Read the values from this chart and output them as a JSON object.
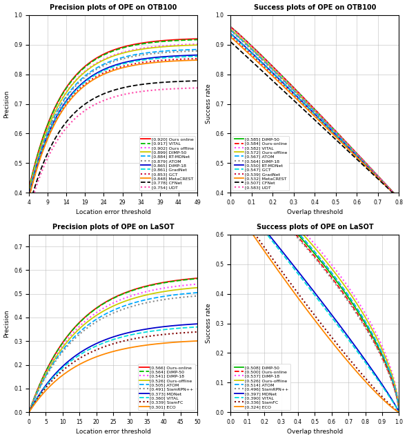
{
  "otb_precision": {
    "title": "Precision plots of OPE on OTB100",
    "xlabel": "Location error threshold",
    "ylabel": "Precision",
    "xlim": [
      4,
      49
    ],
    "ylim": [
      0.4,
      1.0
    ],
    "xticks": [
      4,
      9,
      14,
      19,
      24,
      29,
      34,
      39,
      44,
      49
    ],
    "yticks": [
      0.4,
      0.5,
      0.6,
      0.7,
      0.8,
      0.9,
      1.0
    ],
    "legend_loc": "lower right",
    "curves": [
      {
        "label": "[0.920] Ours online",
        "color": "#ff0000",
        "ls": "-",
        "lw": 1.3,
        "score": 0.92
      },
      {
        "label": "[0.917] VITAL",
        "color": "#00bb00",
        "ls": "--",
        "lw": 1.3,
        "score": 0.917
      },
      {
        "label": "[0.902] Ours offline",
        "color": "#ff44ff",
        "ls": ":",
        "lw": 1.5,
        "score": 0.902
      },
      {
        "label": "[0.899] DIMP-50",
        "color": "#cccc00",
        "ls": "-",
        "lw": 1.3,
        "score": 0.899
      },
      {
        "label": "[0.884] RT-MDNet",
        "color": "#00aaff",
        "ls": "--",
        "lw": 1.3,
        "score": 0.884
      },
      {
        "label": "[0.879] ATOM",
        "color": "#888888",
        "ls": ":",
        "lw": 1.5,
        "score": 0.879
      },
      {
        "label": "[0.865] DiMP-18",
        "color": "#0000cc",
        "ls": "-",
        "lw": 1.3,
        "score": 0.865
      },
      {
        "label": "[0.861] GradNet",
        "color": "#00dddd",
        "ls": "--",
        "lw": 1.3,
        "score": 0.861
      },
      {
        "label": "[0.853] GCT",
        "color": "#cc0033",
        "ls": ":",
        "lw": 1.5,
        "score": 0.853
      },
      {
        "label": "[0.848] MetaCREST",
        "color": "#ff8800",
        "ls": "-",
        "lw": 1.3,
        "score": 0.848
      },
      {
        "label": "[0.778] CFNet",
        "color": "#000000",
        "ls": "--",
        "lw": 1.3,
        "score": 0.778
      },
      {
        "label": "[0.754] UDT",
        "color": "#ff44aa",
        "ls": ":",
        "lw": 1.5,
        "score": 0.754
      }
    ]
  },
  "otb_success": {
    "title": "Success plots of OPE on OTB100",
    "xlabel": "Overlap threshold",
    "ylabel": "Success rate",
    "xlim": [
      0.0,
      0.8
    ],
    "ylim": [
      0.4,
      1.0
    ],
    "xticks": [
      0.0,
      0.1,
      0.2,
      0.3,
      0.4,
      0.5,
      0.6,
      0.7,
      0.8
    ],
    "yticks": [
      0.4,
      0.5,
      0.6,
      0.7,
      0.8,
      0.9,
      1.0
    ],
    "legend_loc": "lower left",
    "curves": [
      {
        "label": "[0.585] DiMP-50",
        "color": "#00bb00",
        "ls": "-",
        "lw": 1.3,
        "score": 0.585
      },
      {
        "label": "[0.584] Ours-online",
        "color": "#ff0000",
        "ls": "--",
        "lw": 1.3,
        "score": 0.584
      },
      {
        "label": "[0.582] VITAL",
        "color": "#ff44ff",
        "ls": ":",
        "lw": 1.5,
        "score": 0.582
      },
      {
        "label": "[0.572] Ours-offline",
        "color": "#cccc00",
        "ls": "-",
        "lw": 1.3,
        "score": 0.572
      },
      {
        "label": "[0.567] ATOM",
        "color": "#00aaff",
        "ls": "--",
        "lw": 1.3,
        "score": 0.567
      },
      {
        "label": "[0.564] DiMP-18",
        "color": "#888888",
        "ls": ":",
        "lw": 1.5,
        "score": 0.564
      },
      {
        "label": "[0.550] RT-MDNet",
        "color": "#0000cc",
        "ls": "-",
        "lw": 1.3,
        "score": 0.55
      },
      {
        "label": "[0.547] GCT",
        "color": "#00dddd",
        "ls": "--",
        "lw": 1.3,
        "score": 0.547
      },
      {
        "label": "[0.539] GradNet",
        "color": "#cc0033",
        "ls": ":",
        "lw": 1.5,
        "score": 0.539
      },
      {
        "label": "[0.532] MetaCREST",
        "color": "#ff8800",
        "ls": "-",
        "lw": 1.3,
        "score": 0.532
      },
      {
        "label": "[0.507] CFNet",
        "color": "#000000",
        "ls": "--",
        "lw": 1.3,
        "score": 0.507
      },
      {
        "label": "[0.583] UDT",
        "color": "#ff44aa",
        "ls": ":",
        "lw": 1.5,
        "score": 0.583
      }
    ]
  },
  "lasot_precision": {
    "title": "Precision plots of OPE on LaSOT",
    "xlabel": "Location error threshold",
    "ylabel": "Precision",
    "xlim": [
      0,
      50
    ],
    "ylim": [
      0.0,
      0.75
    ],
    "xticks": [
      0,
      5,
      10,
      15,
      20,
      25,
      30,
      35,
      40,
      45,
      50
    ],
    "yticks": [
      0.0,
      0.1,
      0.2,
      0.3,
      0.4,
      0.5,
      0.6,
      0.7
    ],
    "legend_loc": "lower right",
    "curves": [
      {
        "label": "[0.566] Ours-online",
        "color": "#ff0000",
        "ls": "-",
        "lw": 1.3,
        "score": 0.566
      },
      {
        "label": "[0.564] DiMP-50",
        "color": "#00bb00",
        "ls": "--",
        "lw": 1.3,
        "score": 0.564
      },
      {
        "label": "[0.541] DiMP-18",
        "color": "#ff44ff",
        "ls": ":",
        "lw": 1.5,
        "score": 0.541
      },
      {
        "label": "[0.526] Ours-offline",
        "color": "#cccc00",
        "ls": "-",
        "lw": 1.3,
        "score": 0.526
      },
      {
        "label": "[0.505] ATOM",
        "color": "#00aaff",
        "ls": "--",
        "lw": 1.3,
        "score": 0.505
      },
      {
        "label": "[0.491] SiamRPN++",
        "color": "#888888",
        "ls": ":",
        "lw": 1.5,
        "score": 0.491
      },
      {
        "label": "[0.373] MDNet",
        "color": "#0000cc",
        "ls": "-",
        "lw": 1.3,
        "score": 0.373
      },
      {
        "label": "[0.360] VITAL",
        "color": "#00dddd",
        "ls": "--",
        "lw": 1.3,
        "score": 0.36
      },
      {
        "label": "[0.339] SiamFC",
        "color": "#800000",
        "ls": ":",
        "lw": 1.5,
        "score": 0.339
      },
      {
        "label": "[0.301] ECO",
        "color": "#ff8800",
        "ls": "-",
        "lw": 1.3,
        "score": 0.301
      }
    ]
  },
  "lasot_success": {
    "title": "Success plots of OPE on LaSOT",
    "xlabel": "Overlap threshold",
    "ylabel": "Success rate",
    "xlim": [
      0.0,
      1.0
    ],
    "ylim": [
      0.0,
      0.6
    ],
    "xticks": [
      0.0,
      0.1,
      0.2,
      0.3,
      0.4,
      0.5,
      0.6,
      0.7,
      0.8,
      0.9,
      1.0
    ],
    "yticks": [
      0.0,
      0.1,
      0.2,
      0.3,
      0.4,
      0.5,
      0.6
    ],
    "legend_loc": "lower left",
    "curves": [
      {
        "label": "[0.508] DiMP-50",
        "color": "#00bb00",
        "ls": "-",
        "lw": 1.3,
        "score": 0.508
      },
      {
        "label": "[0.500] Ours-online",
        "color": "#ff0000",
        "ls": "--",
        "lw": 1.3,
        "score": 0.5
      },
      {
        "label": "[0.537] DiMP-18",
        "color": "#ff44ff",
        "ls": ":",
        "lw": 1.5,
        "score": 0.537
      },
      {
        "label": "[0.526] Ours-offline",
        "color": "#cccc00",
        "ls": "-",
        "lw": 1.3,
        "score": 0.526
      },
      {
        "label": "[0.514] ATOM",
        "color": "#00aaff",
        "ls": "--",
        "lw": 1.3,
        "score": 0.514
      },
      {
        "label": "[0.496] SiamRPN++",
        "color": "#888888",
        "ls": ":",
        "lw": 1.5,
        "score": 0.496
      },
      {
        "label": "[0.397] MDNet",
        "color": "#0000cc",
        "ls": "-",
        "lw": 1.3,
        "score": 0.397
      },
      {
        "label": "[0.390] VITAL",
        "color": "#00dddd",
        "ls": "--",
        "lw": 1.3,
        "score": 0.39
      },
      {
        "label": "[0.336] SiamFC",
        "color": "#800000",
        "ls": ":",
        "lw": 1.5,
        "score": 0.336
      },
      {
        "label": "[0.324] ECO",
        "color": "#ff8800",
        "ls": "-",
        "lw": 1.3,
        "score": 0.324
      }
    ]
  }
}
